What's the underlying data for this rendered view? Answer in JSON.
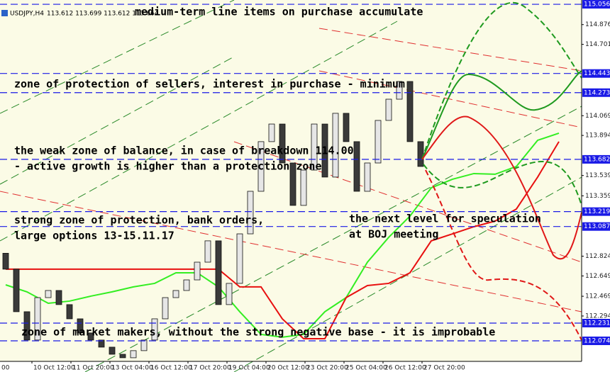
{
  "header": {
    "symbol": "USDJPY,H4",
    "ohlc": "113.612 113.699 113.612 113.664"
  },
  "annotations": [
    "medium-term line items on purchase accumulate",
    "zone of protection of sellers, interest in purchase - minimum",
    "the weak zone of balance, in case of breakdown 114.00",
    "- active growth is higher than a protection zone",
    "strong zone of protection, bank orders,",
    "large options 13-15.11.17",
    "the next level for speculation",
    "at BOJ meeting",
    "zone of market makers, without the strong negative base - it is improbable"
  ],
  "chart_data": {
    "type": "candlestick",
    "x_labels": [
      "00",
      "10 Oct 12:00",
      "11 Oct 20:00",
      "13 Oct 04:00",
      "16 Oct 12:00",
      "17 Oct 20:00",
      "19 Oct 04:00",
      "20 Oct 12:00",
      "23 Oct 20:00",
      "25 Oct 04:00",
      "26 Oct 12:00",
      "27 Oct 20:00"
    ],
    "open": [
      112.85,
      112.709,
      112.332,
      112.081,
      112.457,
      112.52,
      112.395,
      112.269,
      112.144,
      112.081,
      112.018,
      111.955,
      111.924,
      111.987,
      112.081,
      112.269,
      112.457,
      112.52,
      112.614,
      112.771,
      112.96,
      112.395,
      112.583,
      113.022,
      113.399,
      113.839,
      113.995,
      113.65,
      113.274,
      113.587,
      113.995,
      113.525,
      114.09,
      113.839,
      113.399,
      113.65,
      114.027,
      114.215,
      114.372,
      113.839
    ],
    "close": [
      112.709,
      112.332,
      112.081,
      112.457,
      112.52,
      112.395,
      112.269,
      112.144,
      112.081,
      112.018,
      111.955,
      111.924,
      111.987,
      112.081,
      112.269,
      112.457,
      112.52,
      112.614,
      112.771,
      112.96,
      112.395,
      112.583,
      113.022,
      113.399,
      113.839,
      113.995,
      113.65,
      113.274,
      113.587,
      113.995,
      113.525,
      114.09,
      113.839,
      113.399,
      113.65,
      114.027,
      114.215,
      114.372,
      113.839,
      113.619
    ],
    "up_color": "#e6e6e6",
    "down_color": "#3a3a3a",
    "cloud_lines": [
      {
        "color": "#33ee22",
        "values": [
          112.57,
          112.508,
          112.407,
          112.426,
          112.47,
          112.508,
          112.552,
          112.583,
          112.677,
          112.677,
          112.552,
          112.332,
          112.131,
          112.106,
          112.131,
          112.332,
          112.457,
          112.771,
          112.991,
          113.179,
          113.43,
          113.506,
          113.556,
          113.55,
          113.619,
          113.851,
          113.914
        ]
      },
      {
        "color": "#e81010",
        "values": [
          112.709,
          112.709,
          112.709,
          112.709,
          112.709,
          112.709,
          112.709,
          112.709,
          112.709,
          112.709,
          112.709,
          112.552,
          112.552,
          112.269,
          112.093,
          112.093,
          112.457,
          112.564,
          112.583,
          112.677,
          112.96,
          113.022,
          113.085,
          113.135,
          113.242,
          113.525,
          113.839
        ]
      }
    ],
    "ylim": [
      111.892,
      115.094
    ],
    "yticks": [
      114.876,
      114.701,
      114.069,
      113.894,
      113.539,
      113.359,
      112.824,
      112.649,
      112.469,
      112.294
    ],
    "levels": [
      115.056,
      114.443,
      114.273,
      113.682,
      113.219,
      113.087,
      112.231,
      112.074
    ],
    "level_color": "#1a1ae6"
  }
}
